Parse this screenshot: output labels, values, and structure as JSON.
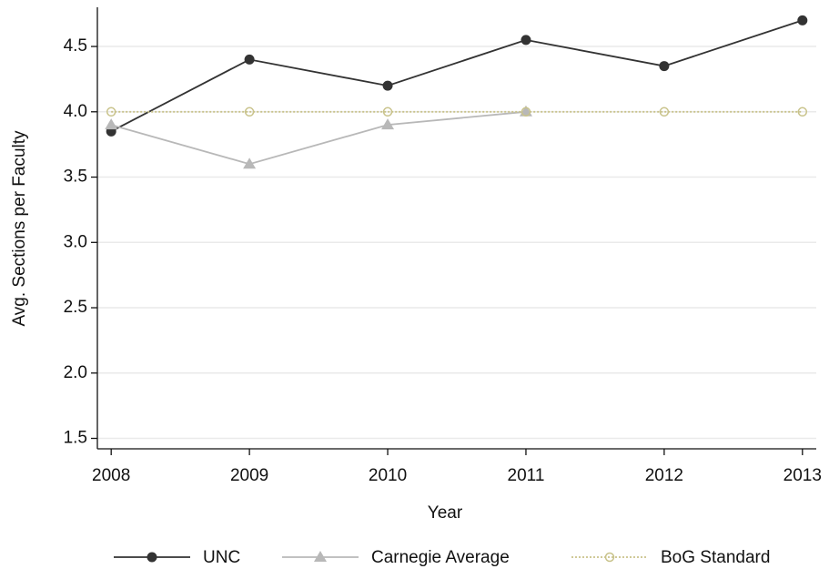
{
  "chart_data": {
    "type": "line",
    "x_label": "Year",
    "y_label": "Avg. Sections per Faculty",
    "x": [
      2008,
      2009,
      2010,
      2011,
      2012,
      2013
    ],
    "xlim": [
      2007.9,
      2013.1
    ],
    "xticks": [
      2008,
      2009,
      2010,
      2011,
      2012,
      2013
    ],
    "ylim": [
      1.42,
      4.8
    ],
    "yticks": [
      1.5,
      {
        "value": 2,
        "label": "2.0"
      },
      2.5,
      {
        "value": 3,
        "label": "3.0"
      },
      3.5,
      {
        "value": 4,
        "label": "4.0"
      },
      4.5
    ],
    "grid": true,
    "legend": "bottom",
    "series": [
      {
        "name": "UNC",
        "color": "#333333",
        "marker": "circle",
        "dash": "solid",
        "values": [
          3.85,
          4.4,
          4.2,
          4.55,
          4.35,
          4.7
        ]
      },
      {
        "name": "Carnegie Average",
        "color": "#b8b8b8",
        "marker": "triangle",
        "dash": "solid",
        "values": [
          3.9,
          3.6,
          3.9,
          4.0,
          null,
          null
        ]
      },
      {
        "name": "BoG Standard",
        "color": "#c9c38b",
        "marker": "hollow-circle",
        "dash": "dotted",
        "values": [
          4.0,
          4.0,
          4.0,
          4.0,
          4.0,
          4.0
        ]
      }
    ]
  }
}
